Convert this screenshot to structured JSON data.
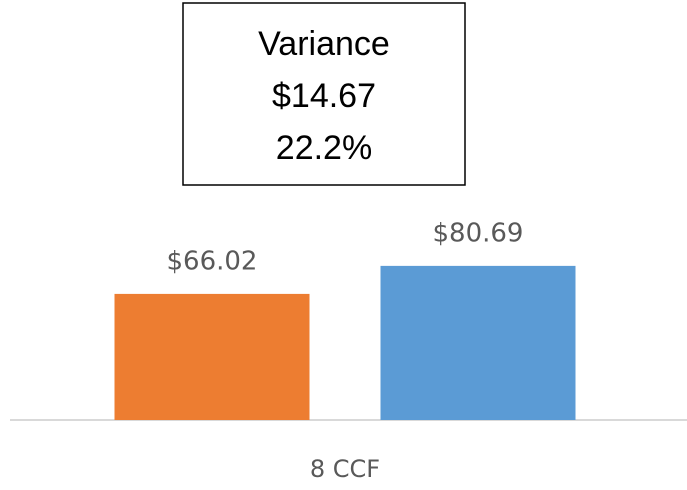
{
  "chart_data": {
    "type": "bar",
    "categories": [
      "8 CCF"
    ],
    "series": [
      {
        "color": "#ed7d31",
        "values": [
          66.02
        ],
        "value_labels": [
          "$66.02"
        ]
      },
      {
        "color": "#5b9bd5",
        "values": [
          80.69
        ],
        "value_labels": [
          "$80.69"
        ]
      }
    ],
    "ylim": [
      0,
      100
    ],
    "annotation": [
      "Variance",
      "$14.67",
      "22.2%"
    ]
  }
}
